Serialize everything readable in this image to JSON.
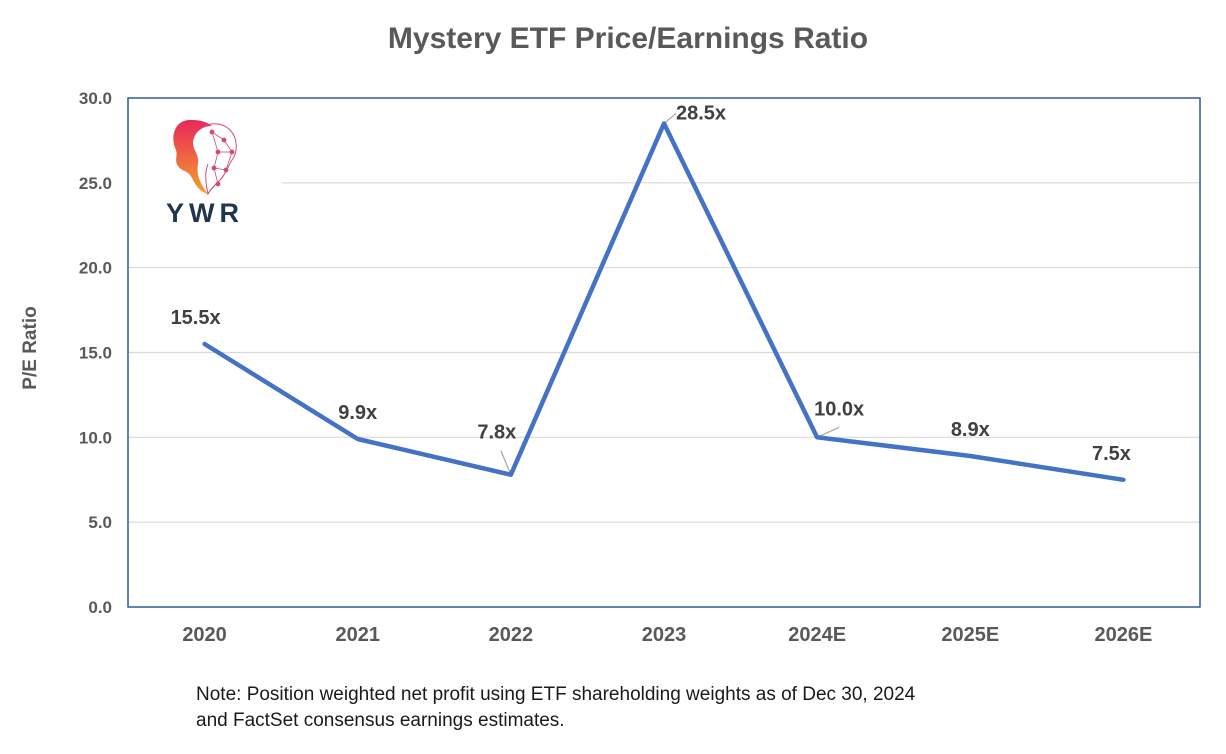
{
  "chart_data": {
    "type": "line",
    "title": "Mystery ETF Price/Earnings Ratio",
    "ylabel": "P/E Ratio",
    "xlabel": "",
    "categories": [
      "2020",
      "2021",
      "2022",
      "2023",
      "2024E",
      "2025E",
      "2026E"
    ],
    "series": [
      {
        "values": [
          15.5,
          9.9,
          7.8,
          28.5,
          10.0,
          8.9,
          7.5
        ],
        "labels": [
          "15.5x",
          "9.9x",
          "7.8x",
          "28.5x",
          "10.0x",
          "8.9x",
          "7.5x"
        ],
        "color": "#4472c4"
      }
    ],
    "ylim": [
      0,
      30
    ],
    "yticks": [
      "0.0",
      "5.0",
      "10.0",
      "15.0",
      "20.0",
      "25.0",
      "30.0"
    ],
    "grid": true,
    "legend": "none"
  },
  "logo": {
    "text": "YWR",
    "icon": "head-network-icon"
  },
  "note": {
    "line1": "Note: Position weighted net profit using ETF shareholding weights as of Dec 30, 2024",
    "line2": "and FactSet consensus earnings estimates."
  }
}
